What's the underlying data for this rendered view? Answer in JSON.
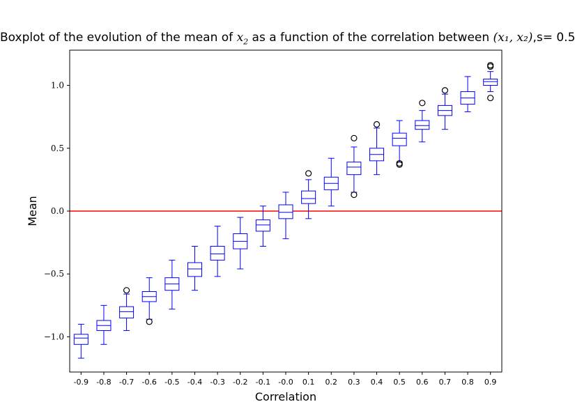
{
  "chart_data": {
    "type": "box",
    "title": {
      "prefix": "Boxplot of the evolution of the mean of ",
      "var1": "x",
      "var1_sub": "2",
      "middle": " as a function of the correlation between ",
      "pair": "(x₁, x₂)",
      "suffix": ",s= 0.5"
    },
    "xlabel": "Correlation",
    "ylabel": "Mean",
    "ylim": [
      -1.28,
      1.28
    ],
    "yticks": [
      -1.0,
      -0.5,
      0.0,
      0.5,
      1.0
    ],
    "ytick_labels": [
      "−1.0",
      "−0.5",
      "0.0",
      "0.5",
      "1.0"
    ],
    "reference_line": {
      "y": 0.0,
      "color": "#ff0000"
    },
    "box_color": "#0000ff",
    "categories": [
      "-0.9",
      "-0.8",
      "-0.7",
      "-0.6",
      "-0.5",
      "-0.4",
      "-0.3",
      "-0.2",
      "-0.1",
      "-0.0",
      "0.1",
      "0.2",
      "0.3",
      "0.4",
      "0.5",
      "0.6",
      "0.7",
      "0.8",
      "0.9"
    ],
    "boxes": [
      {
        "whislo": -1.17,
        "q1": -1.06,
        "med": -1.01,
        "q3": -0.98,
        "whishi": -0.9,
        "fliers": []
      },
      {
        "whislo": -1.06,
        "q1": -0.95,
        "med": -0.91,
        "q3": -0.87,
        "whishi": -0.75,
        "fliers": []
      },
      {
        "whislo": -0.95,
        "q1": -0.85,
        "med": -0.8,
        "q3": -0.76,
        "whishi": -0.66,
        "fliers": [
          -0.63
        ]
      },
      {
        "whislo": -0.86,
        "q1": -0.72,
        "med": -0.68,
        "q3": -0.64,
        "whishi": -0.53,
        "fliers": [
          -0.88
        ]
      },
      {
        "whislo": -0.78,
        "q1": -0.63,
        "med": -0.58,
        "q3": -0.53,
        "whishi": -0.39,
        "fliers": []
      },
      {
        "whislo": -0.63,
        "q1": -0.52,
        "med": -0.46,
        "q3": -0.41,
        "whishi": -0.28,
        "fliers": []
      },
      {
        "whislo": -0.52,
        "q1": -0.39,
        "med": -0.34,
        "q3": -0.28,
        "whishi": -0.12,
        "fliers": []
      },
      {
        "whislo": -0.46,
        "q1": -0.3,
        "med": -0.24,
        "q3": -0.18,
        "whishi": -0.05,
        "fliers": []
      },
      {
        "whislo": -0.28,
        "q1": -0.16,
        "med": -0.11,
        "q3": -0.07,
        "whishi": 0.04,
        "fliers": []
      },
      {
        "whislo": -0.22,
        "q1": -0.06,
        "med": -0.01,
        "q3": 0.05,
        "whishi": 0.15,
        "fliers": []
      },
      {
        "whislo": -0.06,
        "q1": 0.06,
        "med": 0.1,
        "q3": 0.16,
        "whishi": 0.25,
        "fliers": [
          0.3
        ]
      },
      {
        "whislo": 0.04,
        "q1": 0.17,
        "med": 0.22,
        "q3": 0.27,
        "whishi": 0.42,
        "fliers": []
      },
      {
        "whislo": 0.15,
        "q1": 0.29,
        "med": 0.35,
        "q3": 0.39,
        "whishi": 0.51,
        "fliers": [
          0.58,
          0.13
        ]
      },
      {
        "whislo": 0.29,
        "q1": 0.4,
        "med": 0.45,
        "q3": 0.5,
        "whishi": 0.66,
        "fliers": [
          0.69
        ]
      },
      {
        "whislo": 0.39,
        "q1": 0.52,
        "med": 0.58,
        "q3": 0.62,
        "whishi": 0.72,
        "fliers": [
          0.38,
          0.37
        ]
      },
      {
        "whislo": 0.55,
        "q1": 0.65,
        "med": 0.68,
        "q3": 0.72,
        "whishi": 0.8,
        "fliers": [
          0.86
        ]
      },
      {
        "whislo": 0.65,
        "q1": 0.76,
        "med": 0.8,
        "q3": 0.84,
        "whishi": 0.93,
        "fliers": [
          0.96
        ]
      },
      {
        "whislo": 0.79,
        "q1": 0.85,
        "med": 0.9,
        "q3": 0.95,
        "whishi": 1.07,
        "fliers": []
      },
      {
        "whislo": 0.95,
        "q1": 1.0,
        "med": 1.03,
        "q3": 1.05,
        "whishi": 1.11,
        "fliers": [
          1.16,
          1.15,
          0.9
        ]
      }
    ]
  }
}
